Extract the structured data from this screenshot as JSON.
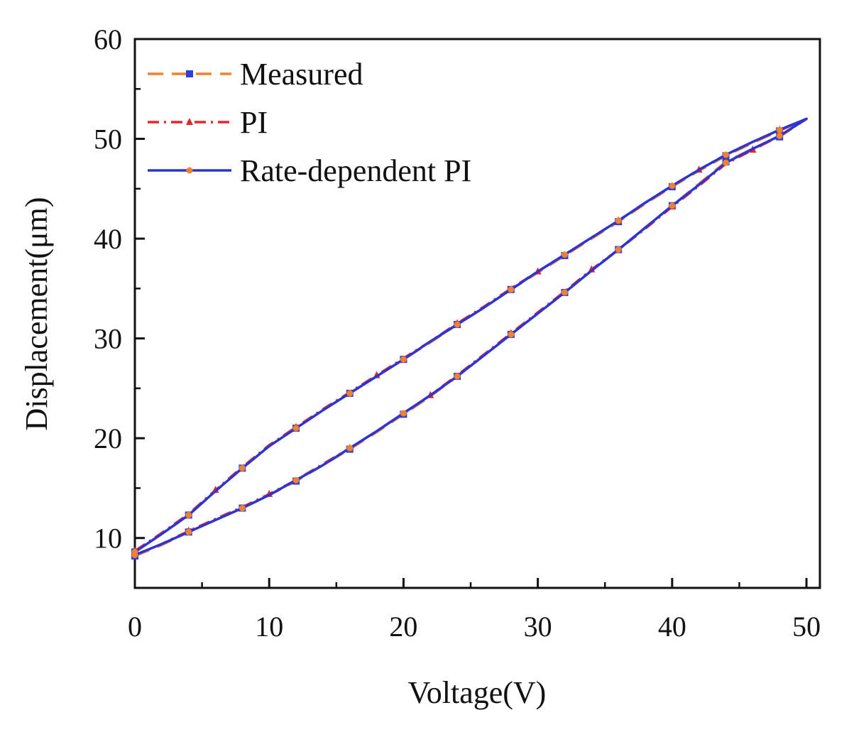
{
  "chart_data": {
    "type": "line",
    "title": "",
    "xlabel": "Voltage(V)",
    "ylabel": "Displacement(μm)",
    "xlim": [
      0,
      51
    ],
    "ylim": [
      5,
      60
    ],
    "xticks": [
      0,
      10,
      20,
      30,
      40,
      50
    ],
    "yticks": [
      10,
      20,
      30,
      40,
      50,
      60
    ],
    "grid": false,
    "legend": {
      "position": "top-left"
    },
    "series": [
      {
        "name": "Measured",
        "color": "#f0812e",
        "line": "dashed",
        "marker": "square",
        "marker_color": "#2f3fd8",
        "x": [
          0,
          2,
          4,
          6,
          8,
          10,
          12,
          14,
          16,
          18,
          20,
          22,
          24,
          26,
          28,
          30,
          32,
          34,
          36,
          38,
          40,
          42,
          44,
          46,
          48,
          50,
          48,
          46,
          44,
          42,
          40,
          38,
          36,
          34,
          32,
          30,
          28,
          26,
          24,
          22,
          20,
          18,
          16,
          14,
          12,
          10,
          8,
          6,
          4,
          2,
          0
        ],
        "y": [
          8.2,
          9.3,
          10.6,
          11.8,
          13.0,
          14.3,
          15.7,
          17.3,
          18.9,
          20.6,
          22.4,
          24.2,
          26.2,
          28.3,
          30.4,
          32.5,
          34.6,
          36.8,
          38.9,
          41.1,
          43.3,
          45.5,
          47.7,
          49.0,
          50.2,
          52.0,
          50.8,
          49.6,
          48.3,
          46.8,
          45.2,
          43.5,
          41.7,
          40.0,
          38.3,
          36.6,
          34.9,
          33.1,
          31.4,
          29.6,
          27.9,
          26.2,
          24.5,
          22.8,
          21.0,
          19.2,
          17.0,
          14.7,
          12.3,
          10.4,
          8.6
        ]
      },
      {
        "name": "PI",
        "color": "#e8262a",
        "line": "dashdot",
        "marker": "triangle",
        "marker_color": "#e8262a",
        "x": [
          0,
          2,
          4,
          6,
          8,
          10,
          12,
          14,
          16,
          18,
          20,
          22,
          24,
          26,
          28,
          30,
          32,
          34,
          36,
          38,
          40,
          42,
          44,
          46,
          48,
          50,
          48,
          46,
          44,
          42,
          40,
          38,
          36,
          34,
          32,
          30,
          28,
          26,
          24,
          22,
          20,
          18,
          16,
          14,
          12,
          10,
          8,
          6,
          4,
          2,
          0
        ],
        "y": [
          8.3,
          9.4,
          10.7,
          11.9,
          13.1,
          14.4,
          15.8,
          17.4,
          19.0,
          20.7,
          22.5,
          24.3,
          26.3,
          28.4,
          30.5,
          32.6,
          34.7,
          36.9,
          38.9,
          41.0,
          43.2,
          45.3,
          47.5,
          48.9,
          50.3,
          52.0,
          50.9,
          49.7,
          48.4,
          46.9,
          45.3,
          43.6,
          41.8,
          40.1,
          38.4,
          36.7,
          35.0,
          33.2,
          31.5,
          29.7,
          28.0,
          26.3,
          24.6,
          22.9,
          21.1,
          19.3,
          17.1,
          14.8,
          12.4,
          10.5,
          8.7
        ]
      },
      {
        "name": "Rate-dependent PI",
        "color": "#2b35d6",
        "line": "solid",
        "marker": "circle",
        "marker_color": "#f0812e",
        "x": [
          0,
          2,
          4,
          6,
          8,
          10,
          12,
          14,
          16,
          18,
          20,
          22,
          24,
          26,
          28,
          30,
          32,
          34,
          36,
          38,
          40,
          42,
          44,
          46,
          48,
          50,
          48,
          46,
          44,
          42,
          40,
          38,
          36,
          34,
          32,
          30,
          28,
          26,
          24,
          22,
          20,
          18,
          16,
          14,
          12,
          10,
          8,
          6,
          4,
          2,
          0
        ],
        "y": [
          8.3,
          9.4,
          10.6,
          11.8,
          13.0,
          14.3,
          15.8,
          17.3,
          19.0,
          20.7,
          22.5,
          24.3,
          26.2,
          28.3,
          30.4,
          32.5,
          34.6,
          36.8,
          38.9,
          41.1,
          43.3,
          45.4,
          47.6,
          49.0,
          50.3,
          52.0,
          50.9,
          49.7,
          48.4,
          46.9,
          45.3,
          43.6,
          41.8,
          40.1,
          38.4,
          36.7,
          34.9,
          33.1,
          31.4,
          29.7,
          27.9,
          26.2,
          24.5,
          22.8,
          21.0,
          19.2,
          17.0,
          14.7,
          12.3,
          10.4,
          8.6
        ]
      }
    ]
  }
}
